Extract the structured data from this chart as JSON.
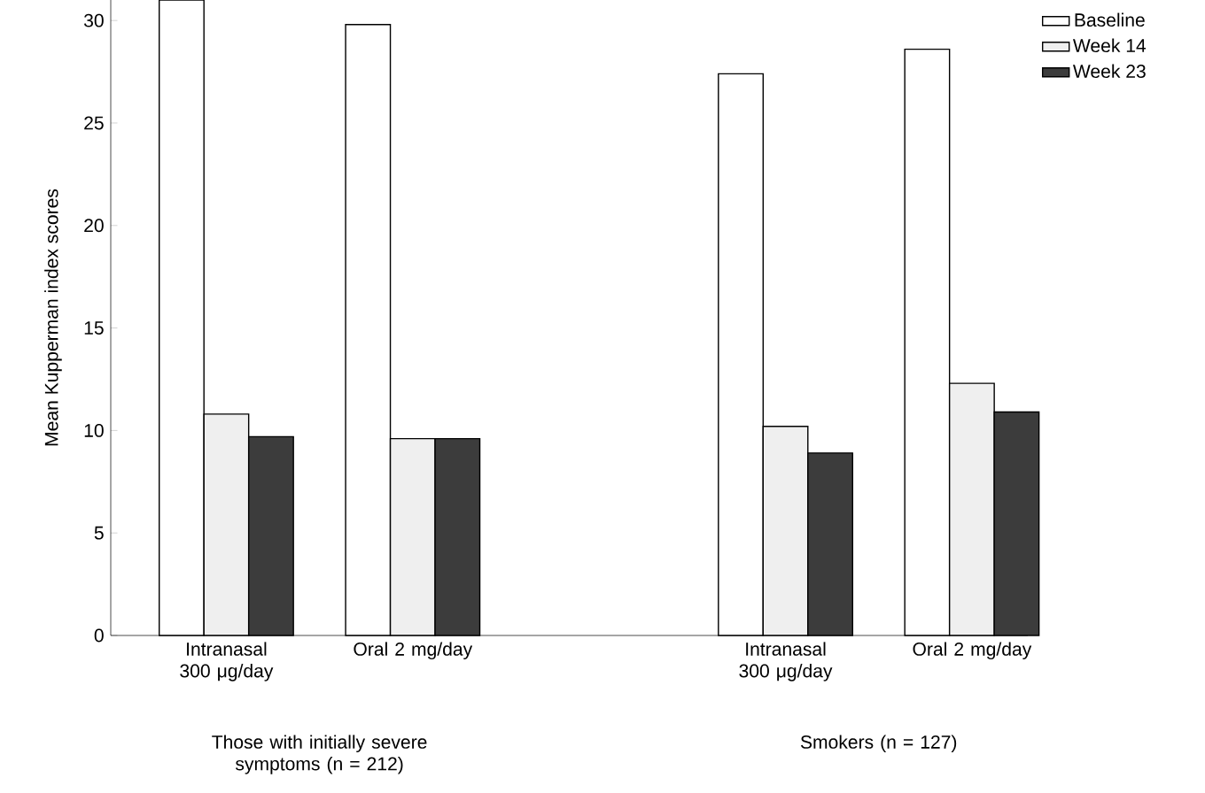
{
  "chart_data": {
    "type": "bar",
    "ylabel": "Mean Kupperman index scores",
    "categories": [
      "Intranasal 300 μg/day",
      "Oral 2 mg/day",
      null,
      "Intranasal 300 μg/day",
      "Oral 2 mg/day"
    ],
    "series": [
      {
        "name": "Baseline",
        "color": "#ffffff",
        "values": [
          31,
          29.8,
          null,
          27.4,
          28.6
        ]
      },
      {
        "name": "Week 14",
        "color": "#efefef",
        "values": [
          10.8,
          9.6,
          null,
          10.2,
          12.3
        ]
      },
      {
        "name": "Week 23",
        "color": "#3c3c3c",
        "values": [
          9.7,
          9.6,
          null,
          8.9,
          10.9
        ]
      }
    ],
    "ylim": [
      0,
      31
    ],
    "yticks": [
      0,
      5,
      10,
      15,
      20,
      25,
      30
    ],
    "legend": "top right",
    "grid": false,
    "annotations": [
      "Those with initially severe symptoms (n = 212)",
      "Smokers (n = 127)"
    ]
  }
}
